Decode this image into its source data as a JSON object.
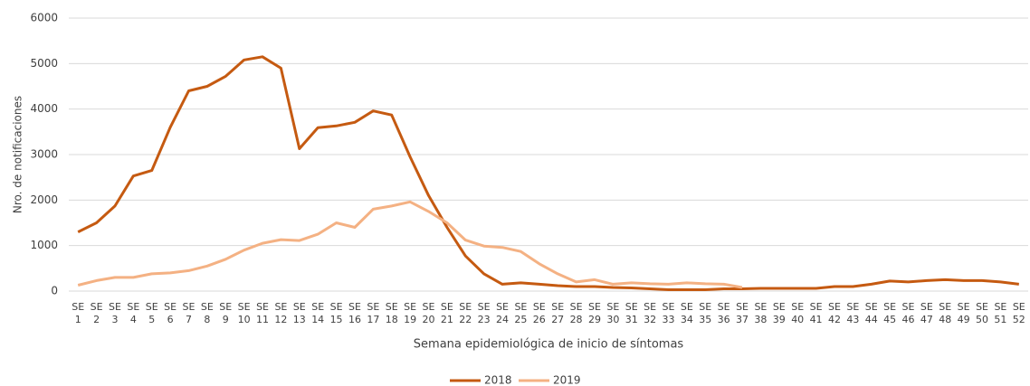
{
  "chart_data": {
    "type": "line",
    "y_label": "Nro. de notificaciones",
    "x_label": "Semana epidemiológica de inicio de síntomas",
    "categories": [
      "SE 1",
      "SE 2",
      "SE 3",
      "SE 4",
      "SE 5",
      "SE 6",
      "SE 7",
      "SE 8",
      "SE 9",
      "SE 10",
      "SE 11",
      "SE 12",
      "SE 13",
      "SE 14",
      "SE 15",
      "SE 16",
      "SE 17",
      "SE 18",
      "SE 19",
      "SE 20",
      "SE 21",
      "SE 22",
      "SE 23",
      "SE 24",
      "SE 25",
      "SE 26",
      "SE 27",
      "SE 28",
      "SE 29",
      "SE 30",
      "SE 31",
      "SE 32",
      "SE 33",
      "SE 34",
      "SE 35",
      "SE 36",
      "SE 37",
      "SE 38",
      "SE 39",
      "SE 40",
      "SE 41",
      "SE 42",
      "SE 43",
      "SE 44",
      "SE 45",
      "SE 46",
      "SE 47",
      "SE 48",
      "SE 49",
      "SE 50",
      "SE 51",
      "SE 52"
    ],
    "series": [
      {
        "name": "2018",
        "color": "#c55a11",
        "values": [
          1300,
          1500,
          1870,
          2530,
          2650,
          3600,
          4400,
          4500,
          4720,
          5080,
          5150,
          4900,
          3130,
          3590,
          3630,
          3710,
          3960,
          3870,
          2950,
          2100,
          1400,
          770,
          380,
          150,
          180,
          150,
          120,
          100,
          100,
          80,
          70,
          50,
          30,
          30,
          30,
          50,
          50,
          60,
          60,
          60,
          60,
          100,
          100,
          150,
          220,
          200,
          230,
          250,
          230,
          230,
          200,
          150
        ]
      },
      {
        "name": "2019",
        "color": "#f4b183",
        "values": [
          130,
          230,
          300,
          300,
          380,
          400,
          450,
          550,
          700,
          900,
          1050,
          1130,
          1110,
          1250,
          1500,
          1400,
          1800,
          1870,
          1960,
          1750,
          1500,
          1120,
          990,
          960,
          870,
          600,
          380,
          200,
          250,
          150,
          180,
          160,
          150,
          180,
          160,
          150,
          80,
          null,
          null,
          null,
          null,
          null,
          null,
          null,
          null,
          null,
          null,
          null,
          null,
          null,
          null,
          null
        ]
      }
    ],
    "ylim": [
      0,
      6000
    ],
    "yticks": [
      0,
      1000,
      2000,
      3000,
      4000,
      5000,
      6000
    ],
    "grid": true,
    "legend": "bottom"
  }
}
